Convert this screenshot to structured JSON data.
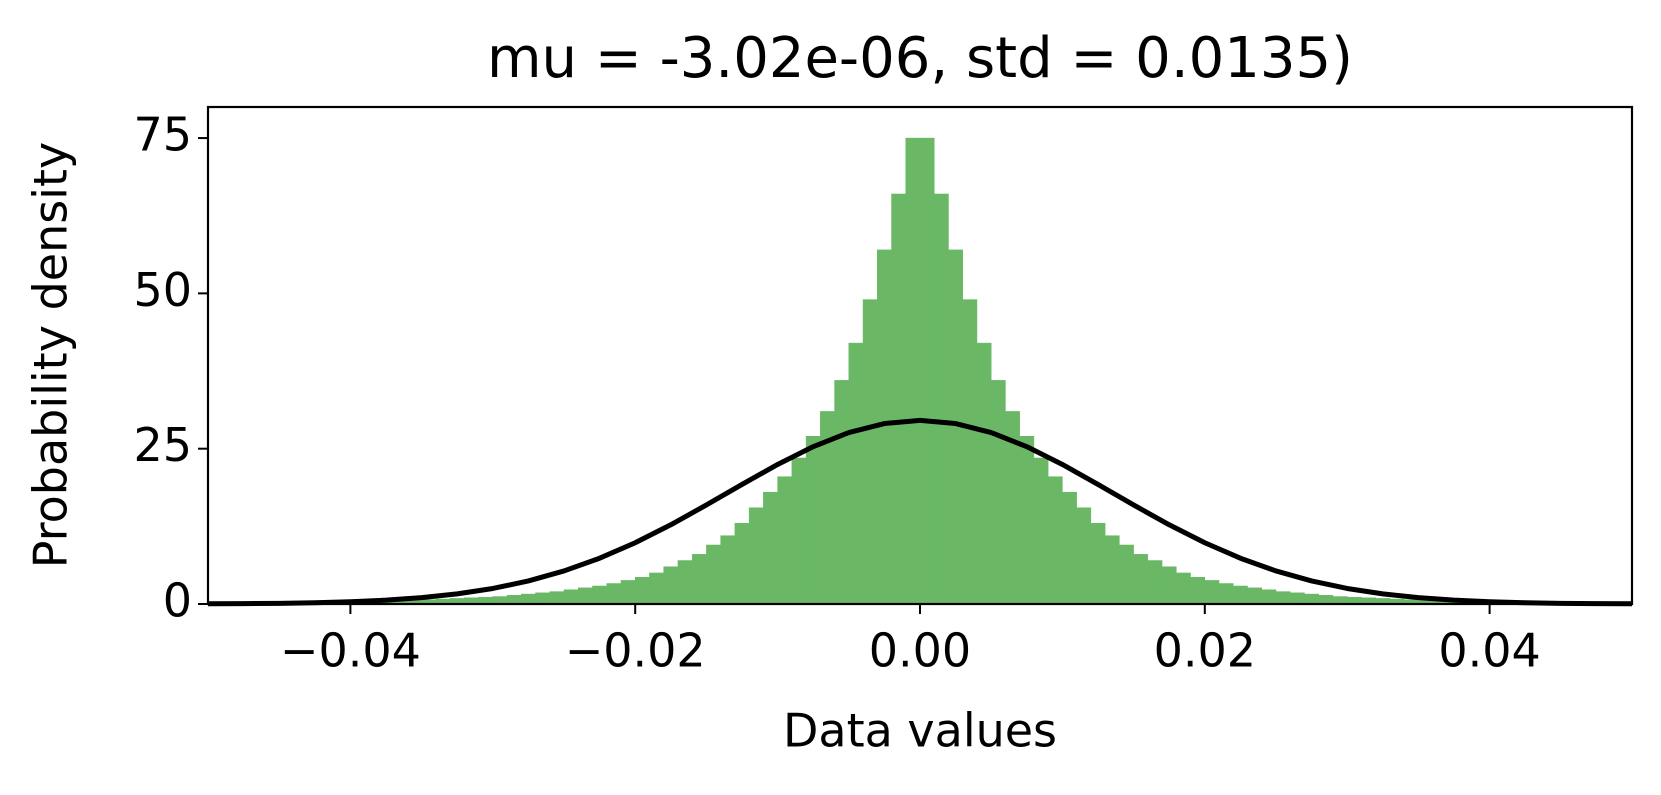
{
  "chart_data": {
    "type": "histogram",
    "title": "mu = -3.02e-06, std = 0.0135)",
    "xlabel": "Data values",
    "ylabel": "Probability density",
    "color": "#6ab866",
    "bins": [
      -0.05,
      -0.049,
      -0.048,
      -0.047,
      -0.046,
      -0.045,
      -0.044,
      -0.043,
      -0.042,
      -0.041,
      -0.04,
      -0.039,
      -0.038,
      -0.037,
      -0.036,
      -0.035,
      -0.034,
      -0.033,
      -0.032,
      -0.031,
      -0.03,
      -0.029,
      -0.028,
      -0.027,
      -0.026,
      -0.025,
      -0.024,
      -0.023,
      -0.022,
      -0.021,
      -0.02,
      -0.019,
      -0.018,
      -0.017,
      -0.016,
      -0.015,
      -0.014,
      -0.013,
      -0.012,
      -0.011,
      -0.01,
      -0.009,
      -0.008,
      -0.007,
      -0.006,
      -0.005,
      -0.004,
      -0.003,
      -0.002,
      -0.001,
      0,
      0.001,
      0.002,
      0.003,
      0.004,
      0.005,
      0.006,
      0.007,
      0.008,
      0.009,
      0.01,
      0.011,
      0.012,
      0.013,
      0.014,
      0.015,
      0.016,
      0.017,
      0.018,
      0.019,
      0.02,
      0.021,
      0.022,
      0.023,
      0.024,
      0.025,
      0.026,
      0.027,
      0.028,
      0.029,
      0.03,
      0.031,
      0.032,
      0.033,
      0.034,
      0.035,
      0.036,
      0.037,
      0.038,
      0.039,
      0.04,
      0.041,
      0.042,
      0.043,
      0.044,
      0.045,
      0.046,
      0.047,
      0.048,
      0.049,
      0.05
    ],
    "values": [
      0.1,
      0.15,
      0.15,
      0.2,
      0.2,
      0.2,
      0.25,
      0.3,
      0.3,
      0.35,
      0.4,
      0.45,
      0.5,
      0.55,
      0.6,
      0.7,
      0.8,
      0.9,
      1.0,
      1.1,
      1.2,
      1.4,
      1.6,
      1.8,
      2.0,
      2.3,
      2.6,
      2.9,
      3.3,
      3.8,
      4.3,
      5,
      6,
      7,
      8,
      9.5,
      11,
      13,
      15.5,
      18,
      20.5,
      23.5,
      27,
      31,
      36,
      42,
      49,
      57,
      66,
      75,
      75,
      66,
      57,
      49,
      42,
      36,
      31,
      27,
      23.5,
      20.5,
      18,
      15.5,
      13,
      11,
      9.5,
      8,
      7,
      6,
      5,
      4.3,
      3.8,
      3.3,
      2.9,
      2.6,
      2.3,
      2.0,
      1.8,
      1.6,
      1.4,
      1.2,
      1.1,
      1.0,
      0.9,
      0.8,
      0.7,
      0.6,
      0.55,
      0.5,
      0.45,
      0.4,
      0.35,
      0.3,
      0.3,
      0.25,
      0.2,
      0.2,
      0.2,
      0.15,
      0.15,
      0.1
    ],
    "curve": {
      "type": "line",
      "color": "#000000",
      "x": [
        -0.05,
        -0.0475,
        -0.045,
        -0.0425,
        -0.04,
        -0.0375,
        -0.035,
        -0.0325,
        -0.03,
        -0.0275,
        -0.025,
        -0.0225,
        -0.02,
        -0.0175,
        -0.015,
        -0.0125,
        -0.01,
        -0.0075,
        -0.005,
        -0.0025,
        0,
        0.0025,
        0.005,
        0.0075,
        0.01,
        0.0125,
        0.015,
        0.0175,
        0.02,
        0.0225,
        0.025,
        0.0275,
        0.03,
        0.0325,
        0.035,
        0.0375,
        0.04,
        0.0425,
        0.045,
        0.0475,
        0.05
      ],
      "values": [
        0.03,
        0.06,
        0.11,
        0.21,
        0.37,
        0.62,
        1.03,
        1.63,
        2.5,
        3.71,
        5.32,
        7.37,
        9.86,
        12.75,
        15.94,
        19.25,
        22.46,
        25.33,
        27.59,
        29.05,
        29.55,
        29.05,
        27.59,
        25.33,
        22.46,
        19.25,
        15.94,
        12.75,
        9.86,
        7.37,
        5.32,
        3.71,
        2.5,
        1.63,
        1.03,
        0.62,
        0.37,
        0.21,
        0.11,
        0.06,
        0.03
      ]
    },
    "xlim": [
      -0.05,
      0.05
    ],
    "ylim": [
      0,
      80
    ],
    "xticks": [
      {
        "value": -0.04,
        "label": "−0.04"
      },
      {
        "value": -0.02,
        "label": "−0.02"
      },
      {
        "value": 0,
        "label": "0.00"
      },
      0.02,
      0.04
    ],
    "yticks": [
      0,
      25,
      50,
      75
    ]
  }
}
